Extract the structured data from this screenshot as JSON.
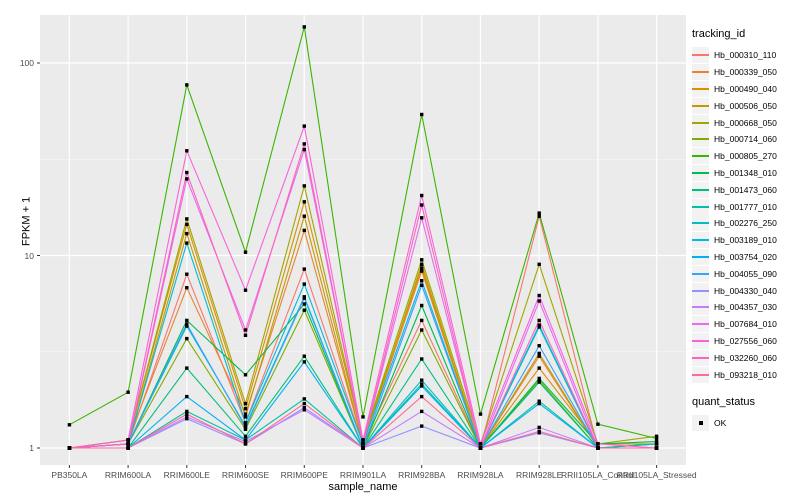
{
  "colors": {
    "panel_bg": "#EBEBEB",
    "grid_major": "#FFFFFF",
    "grid_minor": "#F7F7F7",
    "tick_mark": "#333333",
    "tick_text": "#4D4D4D",
    "point": "#000000",
    "legend_key_bg": "#F2F2F2"
  },
  "legend": {
    "tracking_title": "tracking_id",
    "quant_title": "quant_status",
    "quant_items": [
      {
        "label": "OK",
        "marker": "black-square"
      }
    ]
  },
  "chart_data": {
    "type": "line",
    "title": "",
    "xlabel": "sample_name",
    "ylabel": "FPKM + 1",
    "yscale": "log10",
    "ylim": [
      1,
      178
    ],
    "grid": true,
    "legend_position": "right",
    "point_marker": {
      "shape": "square",
      "color": "#000000",
      "label": "OK"
    },
    "y_ticks": [
      {
        "label": "100",
        "value": 100
      },
      {
        "label": "10",
        "value": 10
      },
      {
        "label": "1",
        "value": 1
      }
    ],
    "y_minor_ticks": [
      31.62,
      3.162
    ],
    "x": [
      "PB350LA",
      "RRIM600LA",
      "RRIM600LE",
      "RRIM600SE",
      "RRIM600PE",
      "RRIM901LA",
      "RRIM928BA",
      "RRIM928LA",
      "RRIM928LE",
      "RRII105LA_Control",
      "RRII105LA_Stressed"
    ],
    "series": [
      {
        "name": "Hb_000310_110",
        "color": "#F8766D",
        "values": [
          1.0,
          1.05,
          8.0,
          1.35,
          8.5,
          1.05,
          4.6,
          1.0,
          16.0,
          1.0,
          1.0
        ]
      },
      {
        "name": "Hb_000339_050",
        "color": "#EA8331",
        "values": [
          1.0,
          1.1,
          6.8,
          1.5,
          13.5,
          1.05,
          8.3,
          1.0,
          3.0,
          1.0,
          1.0
        ]
      },
      {
        "name": "Hb_000490_040",
        "color": "#D89000",
        "values": [
          1.0,
          1.1,
          14.5,
          1.6,
          19.0,
          1.1,
          8.6,
          1.0,
          2.6,
          1.05,
          1.05
        ]
      },
      {
        "name": "Hb_000506_050",
        "color": "#C09B00",
        "values": [
          1.0,
          1.05,
          13.0,
          1.45,
          16.0,
          1.05,
          9.0,
          1.0,
          3.1,
          1.0,
          1.05
        ]
      },
      {
        "name": "Hb_000668_050",
        "color": "#A3A500",
        "values": [
          1.0,
          1.1,
          15.5,
          1.7,
          23.0,
          1.1,
          9.5,
          1.05,
          9.0,
          1.05,
          1.15
        ]
      },
      {
        "name": "Hb_000714_060",
        "color": "#7CAE00",
        "values": [
          1.0,
          1.05,
          3.7,
          1.25,
          5.2,
          1.0,
          4.1,
          1.0,
          2.25,
          1.0,
          1.0
        ]
      },
      {
        "name": "Hb_000805_270",
        "color": "#39B600",
        "values": [
          1.32,
          1.95,
          77.0,
          10.4,
          154.0,
          1.45,
          54.0,
          1.5,
          16.6,
          1.33,
          1.12
        ]
      },
      {
        "name": "Hb_001348_010",
        "color": "#00BB4E",
        "values": [
          1.0,
          1.05,
          4.6,
          2.4,
          5.6,
          1.0,
          5.5,
          1.0,
          2.3,
          1.05,
          1.08
        ]
      },
      {
        "name": "Hb_001473_060",
        "color": "#00BF7D",
        "values": [
          1.0,
          1.0,
          2.6,
          1.15,
          3.0,
          1.0,
          2.9,
          1.0,
          2.2,
          1.0,
          1.05
        ]
      },
      {
        "name": "Hb_001777_010",
        "color": "#00C1A3",
        "values": [
          1.0,
          1.0,
          1.55,
          1.1,
          1.8,
          1.0,
          2.15,
          1.0,
          1.75,
          1.0,
          1.0
        ]
      },
      {
        "name": "Hb_002276_250",
        "color": "#00BFC4",
        "values": [
          1.0,
          1.05,
          4.3,
          1.3,
          6.1,
          1.0,
          2.25,
          1.0,
          4.25,
          1.0,
          1.05
        ]
      },
      {
        "name": "Hb_003189_010",
        "color": "#00BAE0",
        "values": [
          1.0,
          1.05,
          11.6,
          1.35,
          7.1,
          1.05,
          7.4,
          1.0,
          4.35,
          1.0,
          1.0
        ]
      },
      {
        "name": "Hb_003754_020",
        "color": "#00B0F6",
        "values": [
          1.0,
          1.0,
          1.85,
          1.1,
          2.8,
          1.0,
          2.1,
          1.0,
          1.7,
          1.0,
          1.0
        ]
      },
      {
        "name": "Hb_004055_090",
        "color": "#35A2FF",
        "values": [
          1.0,
          1.05,
          4.4,
          1.28,
          6.0,
          1.0,
          7.0,
          1.0,
          3.4,
          1.0,
          1.0
        ]
      },
      {
        "name": "Hb_004330_040",
        "color": "#9590FF",
        "values": [
          1.0,
          1.0,
          1.42,
          1.05,
          1.62,
          1.0,
          1.3,
          1.0,
          1.2,
          1.0,
          1.0
        ]
      },
      {
        "name": "Hb_004357_030",
        "color": "#C77CFF",
        "values": [
          1.0,
          1.0,
          1.45,
          1.08,
          1.58,
          1.0,
          1.55,
          1.0,
          1.28,
          1.0,
          1.0
        ]
      },
      {
        "name": "Hb_007684_010",
        "color": "#E76BF3",
        "values": [
          1.0,
          1.05,
          25.0,
          4.1,
          35.5,
          1.05,
          15.7,
          1.0,
          5.8,
          1.0,
          1.0
        ]
      },
      {
        "name": "Hb_027556_060",
        "color": "#FA62DB",
        "values": [
          1.0,
          1.1,
          35.0,
          6.6,
          47.0,
          1.1,
          20.5,
          1.05,
          6.2,
          1.05,
          1.0
        ]
      },
      {
        "name": "Hb_032260_060",
        "color": "#FF62BC",
        "values": [
          1.0,
          1.05,
          27.0,
          3.85,
          38.0,
          1.05,
          18.3,
          1.0,
          4.6,
          1.0,
          1.0
        ]
      },
      {
        "name": "Hb_093218_010",
        "color": "#FF6A98",
        "values": [
          1.0,
          1.0,
          1.5,
          1.05,
          1.7,
          1.0,
          1.85,
          1.0,
          1.22,
          1.0,
          1.0
        ]
      }
    ]
  }
}
